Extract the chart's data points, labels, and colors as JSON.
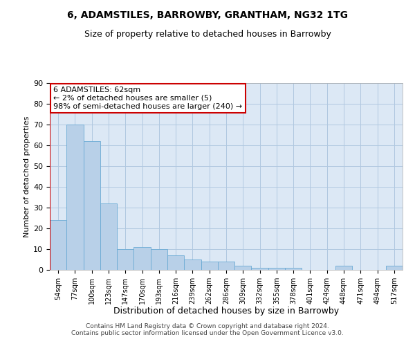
{
  "title_line1": "6, ADAMSTILES, BARROWBY, GRANTHAM, NG32 1TG",
  "title_line2": "Size of property relative to detached houses in Barrowby",
  "xlabel": "Distribution of detached houses by size in Barrowby",
  "ylabel": "Number of detached properties",
  "categories": [
    "54sqm",
    "77sqm",
    "100sqm",
    "123sqm",
    "147sqm",
    "170sqm",
    "193sqm",
    "216sqm",
    "239sqm",
    "262sqm",
    "286sqm",
    "309sqm",
    "332sqm",
    "355sqm",
    "378sqm",
    "401sqm",
    "424sqm",
    "448sqm",
    "471sqm",
    "494sqm",
    "517sqm"
  ],
  "values": [
    24,
    70,
    62,
    32,
    10,
    11,
    10,
    7,
    5,
    4,
    4,
    2,
    1,
    1,
    1,
    0,
    0,
    2,
    0,
    0,
    2
  ],
  "bar_color": "#b8d0e8",
  "bar_edge_color": "#6aaad4",
  "ylim": [
    0,
    90
  ],
  "yticks": [
    0,
    10,
    20,
    30,
    40,
    50,
    60,
    70,
    80,
    90
  ],
  "annotation_line1": "6 ADAMSTILES: 62sqm",
  "annotation_line2": "← 2% of detached houses are smaller (5)",
  "annotation_line3": "98% of semi-detached houses are larger (240) →",
  "annotation_box_facecolor": "#ffffff",
  "annotation_box_edgecolor": "#cc0000",
  "footer_line1": "Contains HM Land Registry data © Crown copyright and database right 2024.",
  "footer_line2": "Contains public sector information licensed under the Open Government Licence v3.0.",
  "background_color": "#dce8f5",
  "grid_color": "#b0c8e0",
  "title1_fontsize": 10,
  "title2_fontsize": 9
}
